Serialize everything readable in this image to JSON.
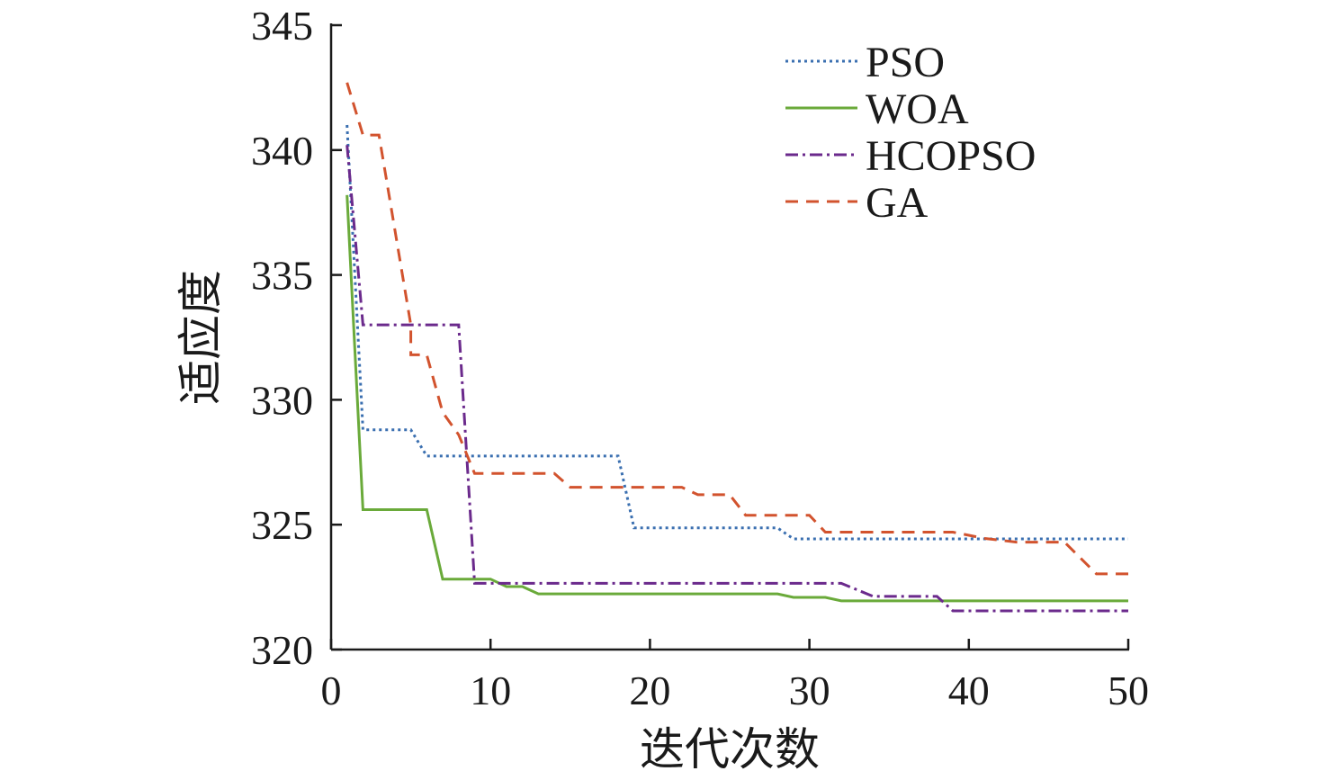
{
  "chart_data": {
    "type": "line",
    "title": "",
    "xlabel": "迭代次数",
    "ylabel": "适应度",
    "xlim": [
      0,
      50
    ],
    "ylim": [
      320,
      345
    ],
    "xticks": [
      "0",
      "10",
      "20",
      "30",
      "40",
      "50"
    ],
    "yticks": [
      "320",
      "325",
      "330",
      "335",
      "340",
      "345"
    ],
    "legend_position": "top-right",
    "grid": false,
    "series": [
      {
        "name": "PSO",
        "color": "#3a6fb0",
        "style": "dotted",
        "points": [
          [
            1,
            341.0
          ],
          [
            2,
            328.8
          ],
          [
            5,
            328.8
          ],
          [
            6,
            327.75
          ],
          [
            18,
            327.75
          ],
          [
            19,
            324.87
          ],
          [
            28,
            324.87
          ],
          [
            29,
            324.43
          ],
          [
            50,
            324.43
          ]
        ]
      },
      {
        "name": "WOA",
        "color": "#6aaa3a",
        "style": "solid",
        "points": [
          [
            1,
            338.2
          ],
          [
            2,
            325.6
          ],
          [
            6,
            325.6
          ],
          [
            7,
            322.82
          ],
          [
            10,
            322.82
          ],
          [
            11,
            322.52
          ],
          [
            12,
            322.52
          ],
          [
            13,
            322.23
          ],
          [
            28,
            322.23
          ],
          [
            29,
            322.09
          ],
          [
            31,
            322.09
          ],
          [
            32,
            321.95
          ],
          [
            50,
            321.95
          ]
        ]
      },
      {
        "name": "HCOPSO",
        "color": "#6b2a8c",
        "style": "dashdot",
        "points": [
          [
            1,
            340.2
          ],
          [
            2,
            333.0
          ],
          [
            8,
            333.0
          ],
          [
            9,
            322.65
          ],
          [
            32,
            322.65
          ],
          [
            34,
            322.13
          ],
          [
            38,
            322.13
          ],
          [
            39,
            321.55
          ],
          [
            50,
            321.55
          ]
        ]
      },
      {
        "name": "GA",
        "color": "#d2532e",
        "style": "dashed",
        "points": [
          [
            1,
            342.7
          ],
          [
            2,
            340.6
          ],
          [
            3,
            340.6
          ],
          [
            5,
            333.0
          ],
          [
            5,
            331.8
          ],
          [
            6,
            331.8
          ],
          [
            7,
            329.5
          ],
          [
            8,
            328.6
          ],
          [
            9,
            327.05
          ],
          [
            14,
            327.05
          ],
          [
            15,
            326.5
          ],
          [
            22,
            326.5
          ],
          [
            23,
            326.2
          ],
          [
            25,
            326.2
          ],
          [
            26,
            325.38
          ],
          [
            30,
            325.38
          ],
          [
            31,
            324.7
          ],
          [
            39,
            324.7
          ],
          [
            41,
            324.45
          ],
          [
            43,
            324.3
          ],
          [
            46,
            324.3
          ],
          [
            48,
            323.03
          ],
          [
            50,
            323.03
          ]
        ]
      }
    ]
  }
}
